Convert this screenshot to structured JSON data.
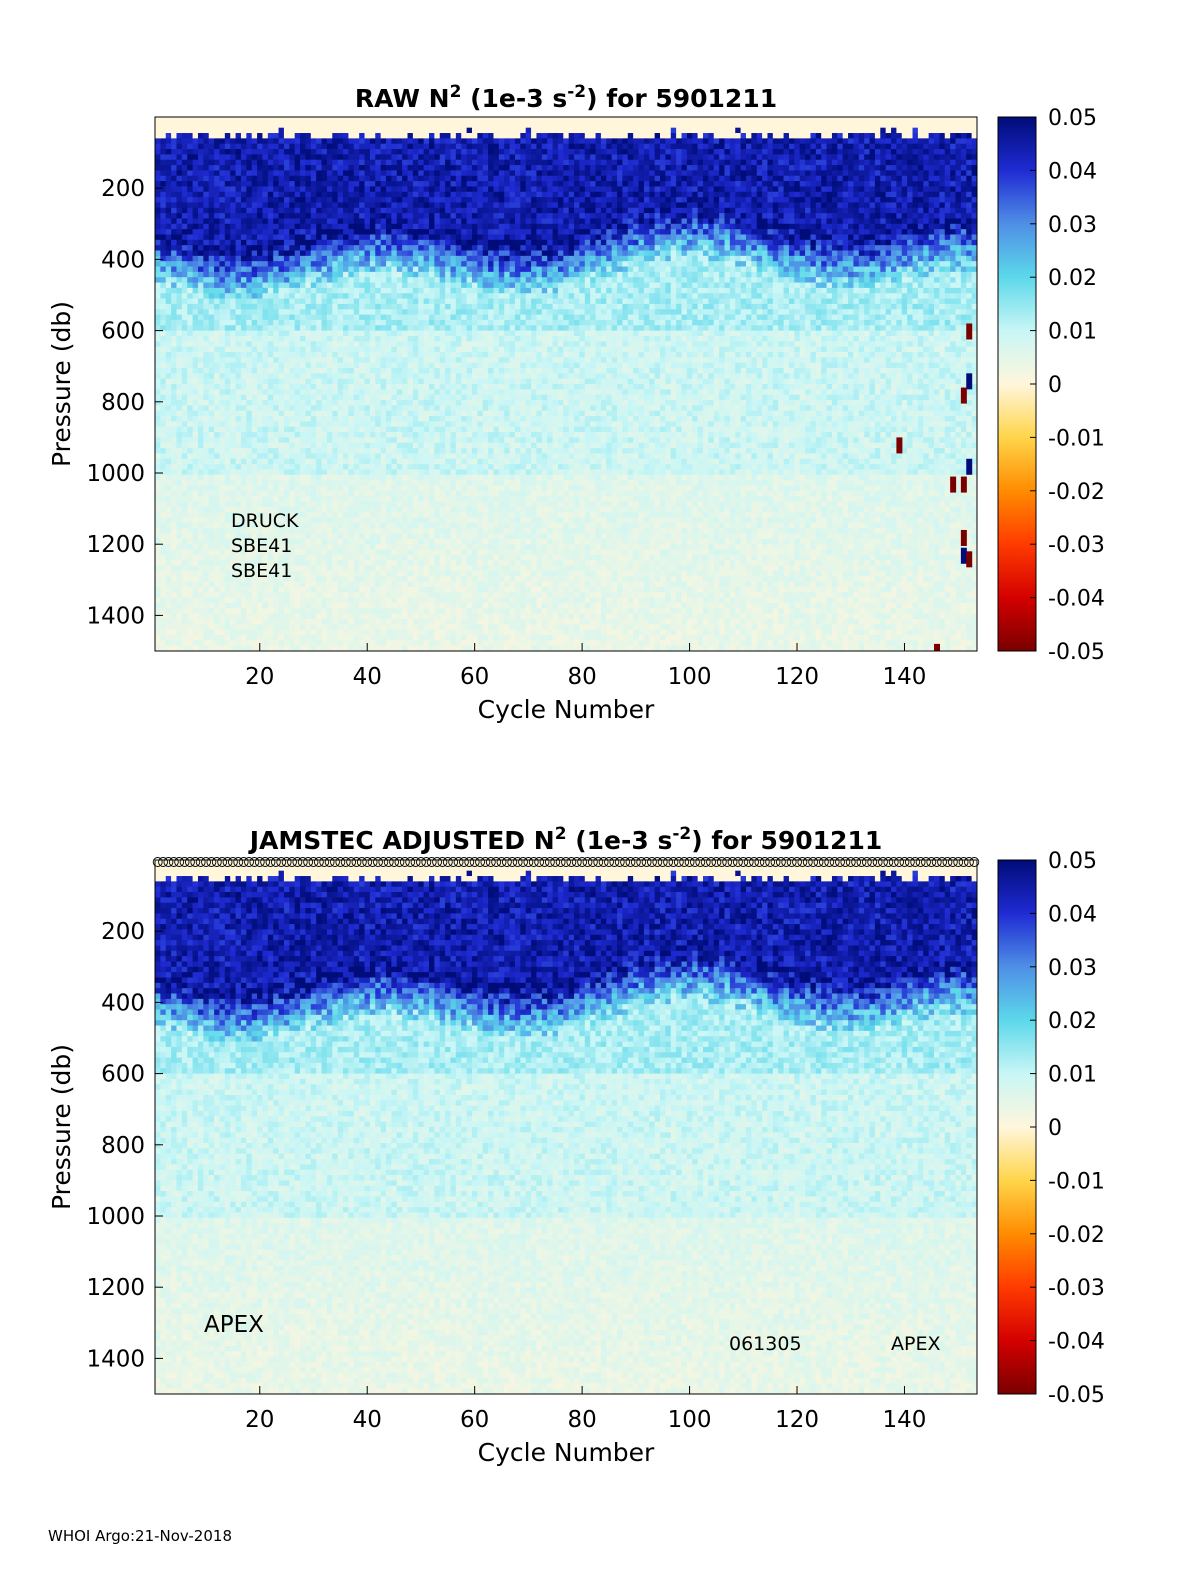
{
  "footer": "WHOI Argo:21-Nov-2018",
  "colormap": {
    "ticks": [
      "0.05",
      "0.04",
      "0.03",
      "0.02",
      "0.01",
      "0",
      "-0.01",
      "-0.02",
      "-0.03",
      "-0.04",
      "-0.05"
    ],
    "stops": [
      "#7a0000",
      "#d40000",
      "#ff3b00",
      "#ff8c00",
      "#ffd54a",
      "#fff6dc",
      "#c8f6f6",
      "#5cd8ea",
      "#4f8fe6",
      "#1f2bd2",
      "#000c78"
    ]
  },
  "chart_data": [
    {
      "type": "heatmap",
      "title": {
        "main": "RAW N",
        "sup1": "2",
        "mid": " (1e-3 s",
        "sup2": "-2",
        "end": ") for 5901211"
      },
      "xlabel": "Cycle Number",
      "ylabel": "Pressure (db)",
      "xlim": [
        1,
        153
      ],
      "ylim": [
        0,
        1500
      ],
      "xticks": [
        "20",
        "40",
        "60",
        "80",
        "100",
        "120",
        "140"
      ],
      "yticks": [
        "200",
        "400",
        "600",
        "800",
        "1000",
        "1200",
        "1400"
      ],
      "clim": [
        -0.05,
        0.05
      ],
      "colorbar_ticks": [
        "0.05",
        "0.04",
        "0.03",
        "0.02",
        "0.01",
        "0",
        "-0.01",
        "-0.02",
        "-0.03",
        "-0.04",
        "-0.05"
      ],
      "profile": {
        "description_bands_pressure_db": [
          0,
          30,
          300,
          450,
          600,
          1000,
          1500
        ],
        "values": [
          0.0,
          0.05,
          0.04,
          0.015,
          0.01,
          0.007,
          0.004
        ]
      },
      "annotations": [
        "DRUCK",
        "SBE41",
        "SBE41"
      ],
      "anomalies": [
        {
          "cycle": 152,
          "pressure": 580,
          "value": -0.05
        },
        {
          "cycle": 152,
          "pressure": 720,
          "value": 0.05
        },
        {
          "cycle": 151,
          "pressure": 760,
          "value": -0.05
        },
        {
          "cycle": 139,
          "pressure": 900,
          "value": -0.05
        },
        {
          "cycle": 152,
          "pressure": 960,
          "value": 0.05
        },
        {
          "cycle": 149,
          "pressure": 1010,
          "value": -0.05
        },
        {
          "cycle": 151,
          "pressure": 1010,
          "value": -0.05
        },
        {
          "cycle": 151,
          "pressure": 1160,
          "value": -0.05
        },
        {
          "cycle": 151,
          "pressure": 1210,
          "value": 0.05
        },
        {
          "cycle": 152,
          "pressure": 1220,
          "value": -0.05
        },
        {
          "cycle": 146,
          "pressure": 1480,
          "value": -0.05
        }
      ]
    },
    {
      "type": "heatmap",
      "title": {
        "main": "JAMSTEC  ADJUSTED N",
        "sup1": "2",
        "mid": " (1e-3 s",
        "sup2": "-2",
        "end": ") for 5901211"
      },
      "xlabel": "Cycle Number",
      "ylabel": "Pressure (db)",
      "xlim": [
        1,
        153
      ],
      "ylim": [
        0,
        1500
      ],
      "xticks": [
        "20",
        "40",
        "60",
        "80",
        "100",
        "120",
        "140"
      ],
      "yticks": [
        "200",
        "400",
        "600",
        "800",
        "1000",
        "1200",
        "1400"
      ],
      "clim": [
        -0.05,
        0.05
      ],
      "colorbar_ticks": [
        "0.05",
        "0.04",
        "0.03",
        "0.02",
        "0.01",
        "0",
        "-0.01",
        "-0.02",
        "-0.03",
        "-0.04",
        "-0.05"
      ],
      "profile": {
        "description_bands_pressure_db": [
          0,
          30,
          300,
          450,
          600,
          1000,
          1500
        ],
        "values": [
          0.0,
          0.05,
          0.04,
          0.015,
          0.01,
          0.007,
          0.004
        ]
      },
      "top_markers": "o",
      "annotations": [
        "APEX",
        "061305",
        "APEX"
      ],
      "anomalies": []
    }
  ]
}
